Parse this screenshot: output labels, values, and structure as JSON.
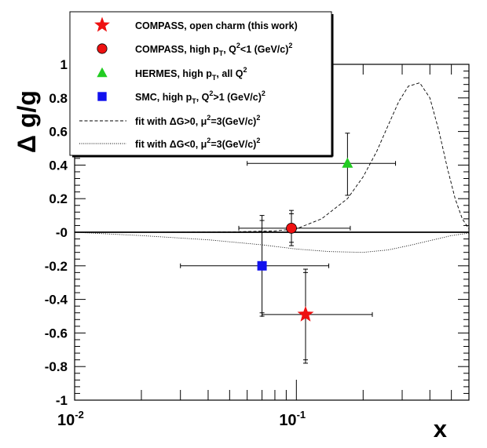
{
  "chart_data": {
    "type": "scatter",
    "xlabel": "x",
    "ylabel": "Δ g/g",
    "x_scale": "log",
    "xlim": [
      0.01,
      0.6
    ],
    "ylim": [
      -1,
      1
    ],
    "y_ticks": [
      {
        "value": 1,
        "label": "1"
      },
      {
        "value": 0.8,
        "label": "0.8"
      },
      {
        "value": 0.6,
        "label": "0.6"
      },
      {
        "value": 0.4,
        "label": "0.4"
      },
      {
        "value": 0.2,
        "label": "0.2"
      },
      {
        "value": 0,
        "label": "-0"
      },
      {
        "value": -0.2,
        "label": "-0.2"
      },
      {
        "value": -0.4,
        "label": "-0.4"
      },
      {
        "value": -0.6,
        "label": "-0.6"
      },
      {
        "value": -0.8,
        "label": "-0.8"
      },
      {
        "value": -1,
        "label": "-1"
      }
    ],
    "x_ticks": [
      {
        "value": 0.01,
        "base": "10",
        "exp": "-2"
      },
      {
        "value": 0.1,
        "base": "10",
        "exp": "-1"
      }
    ],
    "series": [
      {
        "name": "COMPASS, open charm (this work)",
        "marker": "star",
        "color": "#ee1111",
        "points": [
          {
            "x": 0.11,
            "y": -0.49,
            "xlo": 0.07,
            "xhi": 0.22,
            "ylo": -0.78,
            "yhi": -0.22,
            "ylo_inner": -0.76,
            "yhi_inner": -0.24
          }
        ]
      },
      {
        "name": "COMPASS, high pT, Q2<1 (GeV/c)2",
        "label_parts": [
          "COMPASS, high p",
          "T",
          ", Q",
          "2",
          "<1 (GeV/c)",
          "2"
        ],
        "marker": "circle",
        "color": "#ee1111",
        "points": [
          {
            "x": 0.095,
            "y": 0.024,
            "xlo": 0.055,
            "xhi": 0.175,
            "ylo": -0.08,
            "yhi": 0.13,
            "ylo_inner": -0.06,
            "yhi_inner": 0.11
          }
        ]
      },
      {
        "name": "HERMES, high pT, all Q2",
        "label_parts": [
          "HERMES, high p",
          "T",
          ", all Q",
          "2"
        ],
        "marker": "triangle",
        "color": "#22cc22",
        "points": [
          {
            "x": 0.17,
            "y": 0.41,
            "xlo": 0.06,
            "xhi": 0.28,
            "ylo": 0.22,
            "yhi": 0.59
          }
        ]
      },
      {
        "name": "SMC, high pT, Q2>1 (GeV/c)2",
        "label_parts": [
          "SMC, high p",
          "T",
          ", Q",
          "2",
          ">1 (GeV/c)",
          "2"
        ],
        "marker": "square",
        "color": "#1111ee",
        "points": [
          {
            "x": 0.07,
            "y": -0.2,
            "xlo": 0.03,
            "xhi": 0.14,
            "ylo": -0.5,
            "yhi": 0.1,
            "ylo_inner": -0.48,
            "yhi_inner": 0.07
          }
        ]
      }
    ],
    "fits": [
      {
        "name": "fit with ΔG>0, μ2=3(GeV/c)2",
        "label_parts": [
          "fit with  ΔG>0, μ",
          "2",
          "=3(GeV/c)",
          "2"
        ],
        "style": "dashed",
        "x": [
          0.01,
          0.02,
          0.05,
          0.08,
          0.1,
          0.13,
          0.17,
          0.2,
          0.23,
          0.26,
          0.29,
          0.32,
          0.36,
          0.4,
          0.44,
          0.48,
          0.52,
          0.56,
          0.6
        ],
        "y": [
          0.0,
          0.0,
          0.002,
          0.008,
          0.02,
          0.08,
          0.2,
          0.33,
          0.48,
          0.64,
          0.78,
          0.87,
          0.89,
          0.8,
          0.6,
          0.38,
          0.2,
          0.08,
          0.02
        ]
      },
      {
        "name": "fit with ΔG<0, μ2=3(GeV/c)2",
        "label_parts": [
          "fit with  ΔG<0, μ",
          "2",
          "=3(GeV/c)",
          "2"
        ],
        "style": "dotted",
        "x": [
          0.01,
          0.02,
          0.04,
          0.07,
          0.1,
          0.14,
          0.2,
          0.26,
          0.32,
          0.4,
          0.5,
          0.6
        ],
        "y": [
          0.0,
          -0.02,
          -0.045,
          -0.075,
          -0.1,
          -0.115,
          -0.12,
          -0.105,
          -0.08,
          -0.05,
          -0.02,
          -0.005
        ]
      }
    ],
    "grid": false,
    "legend_position": "top-left"
  }
}
